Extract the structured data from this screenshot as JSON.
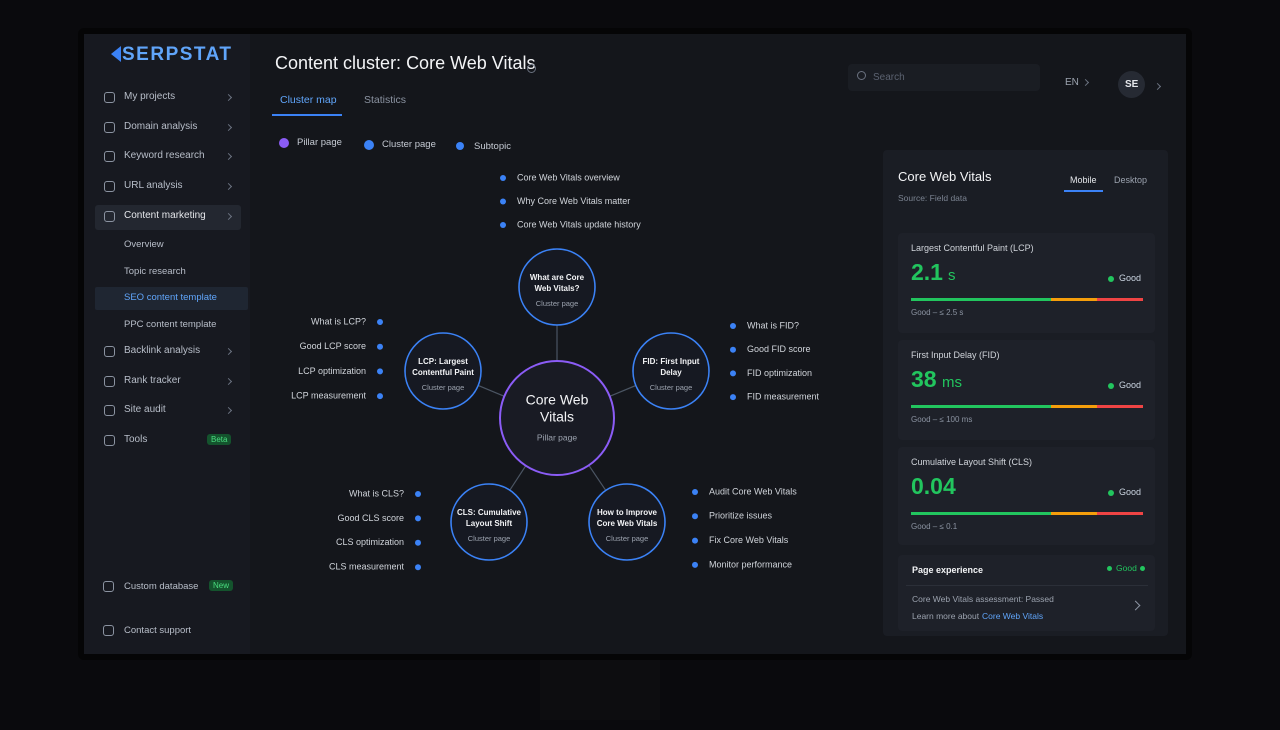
{
  "sidebar": {
    "logo": "SERPSTAT",
    "nav": [
      {
        "label": "My projects"
      },
      {
        "label": "Domain analysis"
      },
      {
        "label": "Keyword research"
      },
      {
        "label": "URL analysis"
      },
      {
        "label": "Content marketing",
        "active": true,
        "children": [
          {
            "label": "Overview"
          },
          {
            "label": "Topic research"
          },
          {
            "label": "SEO content template",
            "active": true
          },
          {
            "label": "PPC content template"
          }
        ]
      },
      {
        "label": "Backlink analysis"
      },
      {
        "label": "Rank tracker"
      },
      {
        "label": "Site audit"
      },
      {
        "label": "Tools",
        "badge": "Beta"
      }
    ],
    "footer": [
      {
        "label": "Custom database",
        "badge": "New"
      },
      {
        "label": "Contact support"
      }
    ]
  },
  "header": {
    "title": "Content cluster: Core Web Vitals",
    "search": "Search",
    "lang": "EN",
    "avatar": "SE"
  },
  "tabs": [
    "Cluster map",
    "Statistics"
  ],
  "legend": [
    "Pillar page",
    "Cluster page",
    "Subtopic"
  ],
  "map": {
    "pillar": {
      "label": [
        "Core Web",
        "Vitals"
      ],
      "type": "Pillar page"
    },
    "clusters": [
      {
        "label": [
          "What are Core",
          "Web Vitals?"
        ],
        "type": "Cluster page",
        "subtopics": [
          "Core Web Vitals overview",
          "Why Core Web Vitals matter",
          "Core Web Vitals update history"
        ]
      },
      {
        "label": [
          "LCP: Largest",
          "Contentful Paint"
        ],
        "type": "Cluster page",
        "subtopics": [
          "What is LCP?",
          "Good LCP score",
          "LCP optimization",
          "LCP measurement"
        ]
      },
      {
        "label": [
          "FID: First Input",
          "Delay"
        ],
        "type": "Cluster page",
        "subtopics": [
          "What is FID?",
          "Good FID score",
          "FID optimization",
          "FID measurement"
        ]
      },
      {
        "label": [
          "CLS: Cumulative",
          "Layout Shift"
        ],
        "type": "Cluster page",
        "subtopics": [
          "What is CLS?",
          "Good CLS score",
          "CLS optimization",
          "CLS measurement"
        ]
      },
      {
        "label": [
          "How to Improve",
          "Core Web Vitals"
        ],
        "type": "Cluster page",
        "subtopics": [
          "Audit Core Web Vitals",
          "Prioritize issues",
          "Fix Core Web Vitals",
          "Monitor performance"
        ]
      }
    ]
  },
  "panel": {
    "title": "Core Web Vitals",
    "tabs": [
      "Mobile",
      "Desktop"
    ],
    "source": "Source: Field data",
    "metrics": [
      {
        "label": "Largest Contentful Paint (LCP)",
        "value": "2.1",
        "unit": "s",
        "status": "Good",
        "threshold": "Good – ≤ 2.5 s"
      },
      {
        "label": "First Input Delay (FID)",
        "value": "38",
        "unit": "ms",
        "status": "Good",
        "threshold": "Good – ≤ 100 ms"
      },
      {
        "label": "Cumulative Layout Shift (CLS)",
        "value": "0.04",
        "unit": "",
        "status": "Good",
        "threshold": "Good – ≤ 0.1"
      }
    ],
    "experience": {
      "title": "Page experience",
      "status": "Good",
      "assessment": "Core Web Vitals assessment: Passed",
      "learn": "Learn more about",
      "link": "Core Web Vitals"
    }
  }
}
